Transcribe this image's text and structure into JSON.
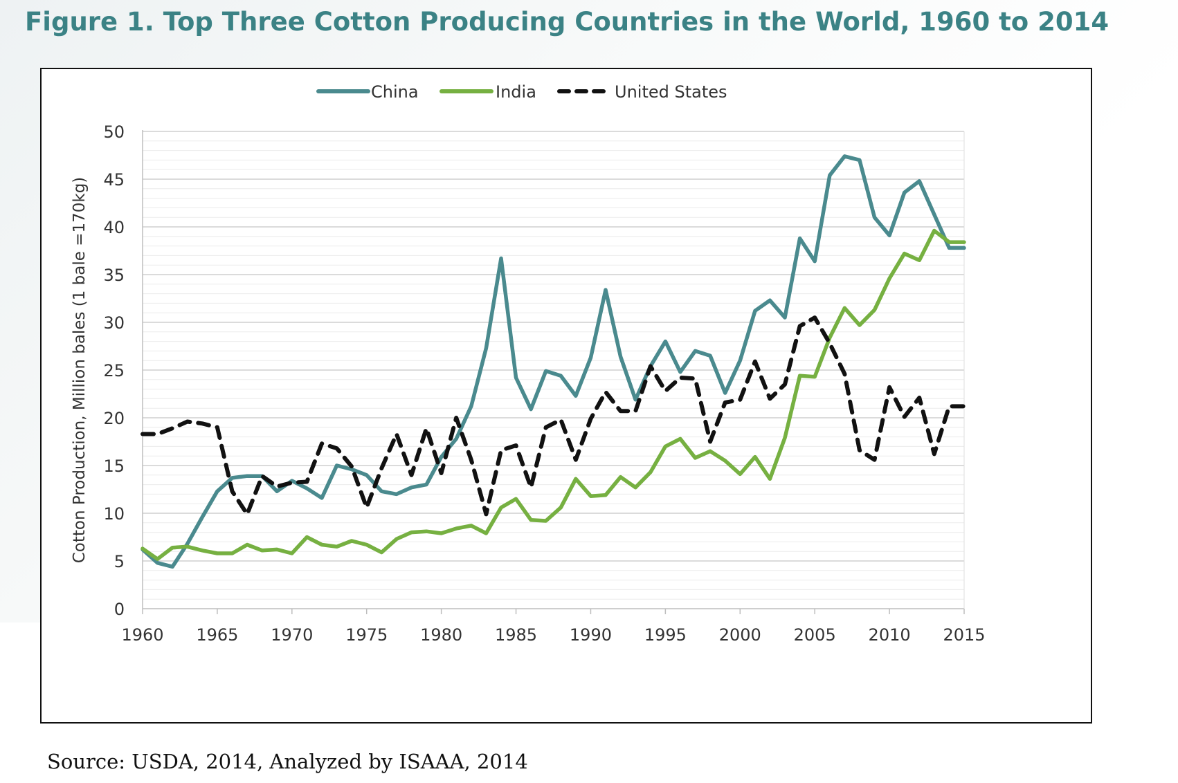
{
  "figure_title": "Figure 1. Top Three Cotton Producing Countries in the World, 1960 to 2014",
  "source_note": "Source: USDA, 2014, Analyzed by ISAAA, 2014",
  "colors": {
    "title": "#3b8285",
    "china": "#4a8a8e",
    "india": "#76b041",
    "united_states": "#111111"
  },
  "chart_data": {
    "type": "line",
    "title": "",
    "xlabel": "",
    "ylabel": "Cotton Production, Million bales (1 bale =170kg)",
    "xlim": [
      1960,
      2015
    ],
    "ylim": [
      0,
      50
    ],
    "xticks": [
      1960,
      1965,
      1970,
      1975,
      1980,
      1985,
      1990,
      1995,
      2000,
      2005,
      2010,
      2015
    ],
    "yticks": [
      0,
      5,
      10,
      15,
      20,
      25,
      30,
      35,
      40,
      45,
      50
    ],
    "grid": true,
    "legend": "top-center",
    "x": [
      1960,
      1961,
      1962,
      1963,
      1964,
      1965,
      1966,
      1967,
      1968,
      1969,
      1970,
      1971,
      1972,
      1973,
      1974,
      1975,
      1976,
      1977,
      1978,
      1979,
      1980,
      1981,
      1982,
      1983,
      1984,
      1985,
      1986,
      1987,
      1988,
      1989,
      1990,
      1991,
      1992,
      1993,
      1994,
      1995,
      1996,
      1997,
      1998,
      1999,
      2000,
      2001,
      2002,
      2003,
      2004,
      2005,
      2006,
      2007,
      2008,
      2009,
      2010,
      2011,
      2012,
      2013,
      2014,
      2015
    ],
    "series": [
      {
        "name": "China",
        "style": "solid",
        "values": [
          6.2,
          4.8,
          4.4,
          6.8,
          9.6,
          12.3,
          13.7,
          13.9,
          13.9,
          12.3,
          13.4,
          12.6,
          11.6,
          15.0,
          14.6,
          14.0,
          12.3,
          12.0,
          12.7,
          13.0,
          15.9,
          17.8,
          21.2,
          27.3,
          36.7,
          24.2,
          20.9,
          24.9,
          24.4,
          22.3,
          26.3,
          33.4,
          26.4,
          21.9,
          25.4,
          28.0,
          24.8,
          27.0,
          26.5,
          22.6,
          26.0,
          31.2,
          32.3,
          30.5,
          38.8,
          36.4,
          45.4,
          47.4,
          47.0,
          41.0,
          39.1,
          43.6,
          44.8,
          41.3,
          37.8,
          37.8
        ]
      },
      {
        "name": "India",
        "style": "solid",
        "values": [
          6.3,
          5.2,
          6.4,
          6.5,
          6.1,
          5.8,
          5.8,
          6.7,
          6.1,
          6.2,
          5.8,
          7.5,
          6.7,
          6.5,
          7.1,
          6.7,
          5.9,
          7.3,
          8.0,
          8.1,
          7.9,
          8.4,
          8.7,
          7.9,
          10.6,
          11.5,
          9.3,
          9.2,
          10.6,
          13.6,
          11.8,
          11.9,
          13.8,
          12.7,
          14.3,
          17.0,
          17.8,
          15.8,
          16.5,
          15.5,
          14.1,
          15.9,
          13.6,
          17.9,
          24.4,
          24.3,
          28.4,
          31.5,
          29.7,
          31.3,
          34.6,
          37.2,
          36.5,
          39.6,
          38.4,
          38.4
        ]
      },
      {
        "name": "United States",
        "style": "dashed",
        "values": [
          18.3,
          18.3,
          18.9,
          19.6,
          19.4,
          19.0,
          12.3,
          9.9,
          13.9,
          12.8,
          13.2,
          13.3,
          17.3,
          16.8,
          14.9,
          10.6,
          14.7,
          18.3,
          14.0,
          18.9,
          14.2,
          20.0,
          15.6,
          9.9,
          16.6,
          17.1,
          12.7,
          19.0,
          19.8,
          15.6,
          19.9,
          22.7,
          20.7,
          20.7,
          25.4,
          22.8,
          24.2,
          24.1,
          17.5,
          21.6,
          21.9,
          25.9,
          22.0,
          23.5,
          29.6,
          30.5,
          27.8,
          24.6,
          16.6,
          15.6,
          23.2,
          20.1,
          22.1,
          16.2,
          21.2,
          21.2
        ]
      }
    ]
  }
}
